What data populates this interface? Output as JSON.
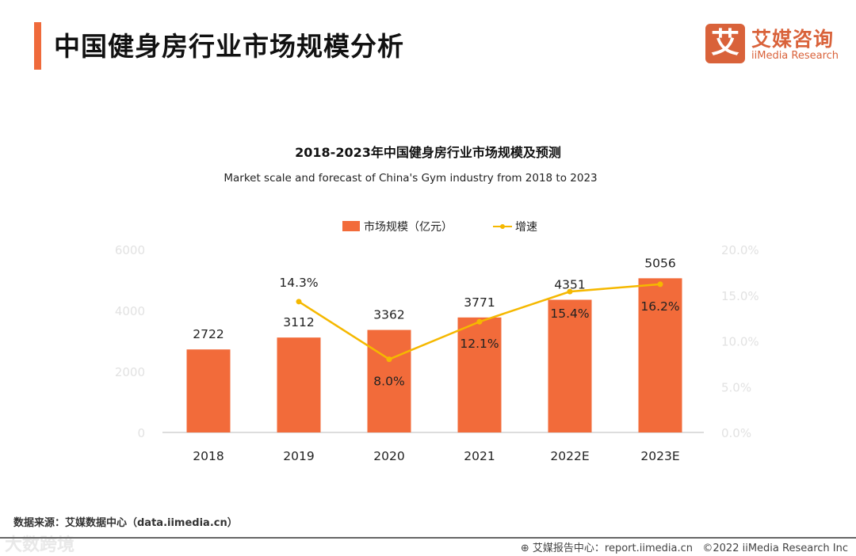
{
  "header": {
    "title": "中国健身房行业市场规模分析",
    "logo_cn": "艾媒咨询",
    "logo_en": "iiMedia Research",
    "logo_mark": "艾"
  },
  "chart_data": {
    "type": "bar",
    "title": "2018-2023年中国健身房行业市场规模及预测",
    "subtitle": "Market scale and forecast of China's Gym industry from 2018 to 2023",
    "categories": [
      "2018",
      "2019",
      "2020",
      "2021",
      "2022E",
      "2023E"
    ],
    "series": [
      {
        "name": "市场规模（亿元）",
        "type": "bar",
        "axis": "left",
        "values": [
          2722,
          3112,
          3362,
          3771,
          4351,
          5056
        ],
        "labels": [
          "2722",
          "3112",
          "3362",
          "3771",
          "4351",
          "5056"
        ],
        "color": "#f26b3a"
      },
      {
        "name": "增速",
        "type": "line",
        "axis": "right",
        "values": [
          null,
          14.3,
          8.0,
          12.1,
          15.4,
          16.2
        ],
        "labels": [
          "",
          "14.3%",
          "8.0%",
          "12.1%",
          "15.4%",
          "16.2%"
        ],
        "color": "#f5b800"
      }
    ],
    "ylim": [
      0,
      6000
    ],
    "yticks": [
      "0",
      "2000",
      "4000",
      "6000"
    ],
    "y2lim": [
      0,
      20
    ],
    "y2ticks": [
      "0.0%",
      "5.0%",
      "10.0%",
      "15.0%",
      "20.0%"
    ],
    "legend": "top-center",
    "grid": false
  },
  "footer": {
    "source": "数据来源：艾媒数据中心（data.iimedia.cn）",
    "watermark": "大数跨境",
    "report": "艾媒报告中心：report.iimedia.cn",
    "copyright": "©2022  iiMedia Research  Inc"
  }
}
